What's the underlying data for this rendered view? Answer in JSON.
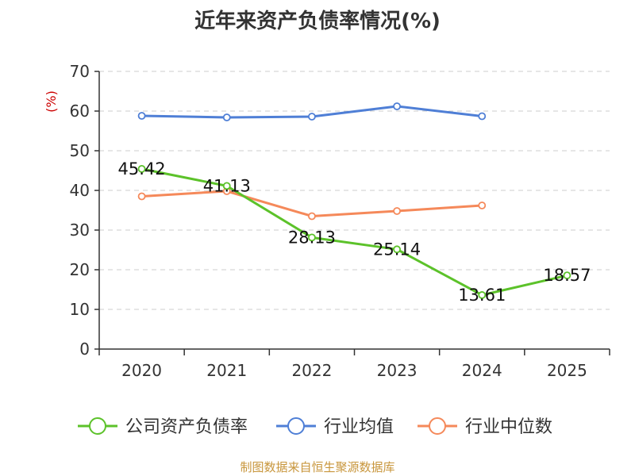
{
  "title": "近年来资产负债率情况(%)",
  "source": "制图数据来自恒生聚源数据库",
  "chart_data": {
    "type": "line",
    "title": "近年来资产负债率情况(%)",
    "ylabel": "(%)",
    "ylim": [
      0,
      70
    ],
    "yticks": [
      0,
      10,
      20,
      30,
      40,
      50,
      60,
      70
    ],
    "categories": [
      "2020",
      "2021",
      "2022",
      "2023",
      "2024",
      "2025"
    ],
    "grid": true,
    "legend_position": "bottom",
    "series": [
      {
        "name": "公司资产负债率",
        "color": "#5cc22a",
        "values": [
          45.42,
          41.13,
          28.13,
          25.14,
          13.61,
          18.57
        ],
        "labels": [
          "45.42",
          "41.13",
          "28.13",
          "25.14",
          "13.61",
          "18.57"
        ]
      },
      {
        "name": "行业均值",
        "color": "#4f7fd6",
        "values": [
          58.8,
          58.4,
          58.6,
          61.2,
          58.7,
          null
        ]
      },
      {
        "name": "行业中位数",
        "color": "#f5895a",
        "values": [
          38.5,
          39.8,
          33.5,
          34.8,
          36.2,
          null
        ]
      }
    ]
  }
}
